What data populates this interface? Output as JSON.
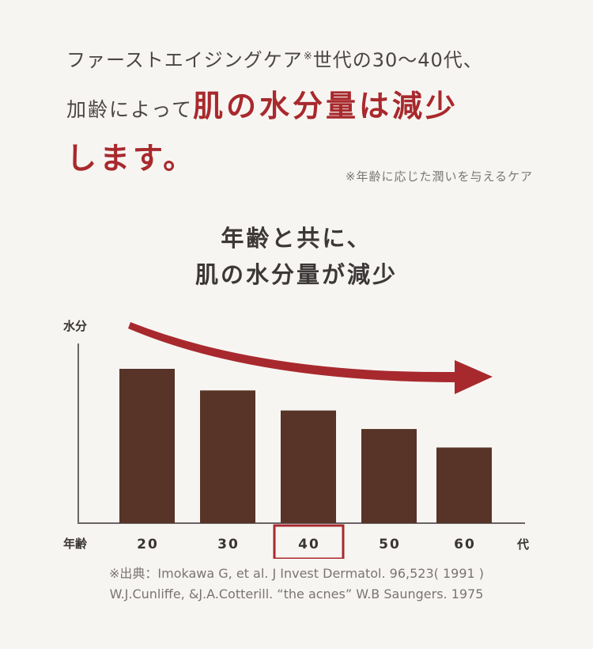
{
  "headline": {
    "line1_text": "ファーストエイジングケア",
    "line1_mark": "※",
    "line1_rest": "世代の30～40代、",
    "line2_plain": "加齢によって",
    "line2_em": "肌の水分量は減少",
    "line3_em": "します。"
  },
  "note": "※年齢に応じた潤いを与えるケア",
  "chart_title_line1": "年齢と共に、",
  "chart_title_line2": "肌の水分量が減少",
  "chart_data": {
    "type": "bar",
    "ylabel": "水分",
    "xlabel_left": "年齢",
    "xlabel_right": "代",
    "categories": [
      "20",
      "30",
      "40",
      "50",
      "60"
    ],
    "values": [
      100,
      86,
      73,
      61,
      49
    ],
    "highlight_category": "40",
    "trend": "decreasing",
    "bar_color": "#573328",
    "highlight_color": "#a8292d",
    "arrow_color": "#a8292d"
  },
  "source_line1": "※出典：Imokawa G, et al. J Invest Dermatol. 96,523( 1991 )",
  "source_line2": "W.J.Cunliffe, &J.A.Cotterill. “the acnes” W.B Saungers. 1975"
}
